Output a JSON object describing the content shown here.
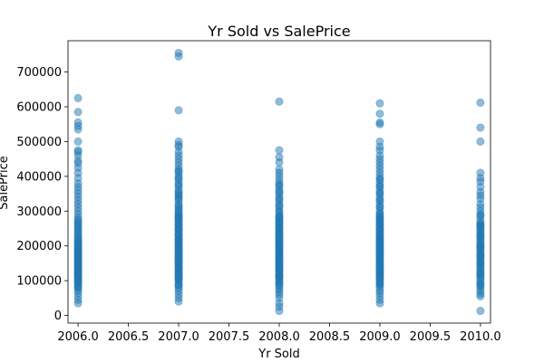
{
  "chart_data": {
    "type": "scatter",
    "title": "Yr Sold vs SalePrice",
    "xlabel": "Yr Sold",
    "ylabel": "SalePrice",
    "xlim": [
      2005.9,
      2010.1
    ],
    "ylim": [
      -22000,
      790000
    ],
    "xticks": [
      2006.0,
      2006.5,
      2007.0,
      2007.5,
      2008.0,
      2008.5,
      2009.0,
      2009.5,
      2010.0
    ],
    "xtick_labels": [
      "2006.0",
      "2006.5",
      "2007.0",
      "2007.5",
      "2008.0",
      "2008.5",
      "2009.0",
      "2009.5",
      "2010.0"
    ],
    "yticks": [
      0,
      100000,
      200000,
      300000,
      400000,
      500000,
      600000,
      700000
    ],
    "ytick_labels": [
      "0",
      "100000",
      "200000",
      "300000",
      "400000",
      "500000",
      "600000",
      "700000"
    ],
    "grid": false,
    "marker_color": "#1f77b4",
    "marker_alpha": 0.5,
    "series": [
      {
        "x": [
          2006,
          2006,
          2006,
          2006,
          2006,
          2006,
          2006,
          2006,
          2006,
          2006,
          2006,
          2006,
          2006,
          2006,
          2006,
          2006,
          2006,
          2006,
          2006,
          2006,
          2006,
          2006,
          2006,
          2006,
          2006,
          2006,
          2006,
          2006,
          2006,
          2006,
          2006,
          2006,
          2006,
          2006,
          2006,
          2006,
          2006,
          2006,
          2006,
          2006,
          2006,
          2006,
          2006,
          2006,
          2006,
          2006,
          2006,
          2006,
          2006,
          2006,
          2006,
          2006,
          2006,
          2006,
          2006,
          2006,
          2006,
          2006,
          2006,
          2006,
          2006,
          2006,
          2006,
          2006,
          2006,
          2006,
          2006,
          2006,
          2006,
          2006,
          2006,
          2006,
          2006,
          2006,
          2006,
          2006,
          2006,
          2006,
          2006,
          2006,
          2006,
          2006,
          2006,
          2006,
          2006,
          2006,
          2006,
          2006,
          2006,
          2006,
          2007,
          2007,
          2007,
          2007,
          2007,
          2007,
          2007,
          2007,
          2007,
          2007,
          2007,
          2007,
          2007,
          2007,
          2007,
          2007,
          2007,
          2007,
          2007,
          2007,
          2007,
          2007,
          2007,
          2007,
          2007,
          2007,
          2007,
          2007,
          2007,
          2007,
          2007,
          2007,
          2007,
          2007,
          2007,
          2007,
          2007,
          2007,
          2007,
          2007,
          2007,
          2007,
          2007,
          2007,
          2007,
          2007,
          2007,
          2007,
          2007,
          2007,
          2007,
          2007,
          2007,
          2007,
          2007,
          2007,
          2007,
          2007,
          2007,
          2007,
          2007,
          2007,
          2007,
          2007,
          2007,
          2007,
          2007,
          2007,
          2007,
          2007,
          2007,
          2007,
          2007,
          2007,
          2007,
          2007,
          2007,
          2007,
          2007,
          2007,
          2007,
          2007,
          2007,
          2007,
          2007,
          2007,
          2007,
          2007,
          2007,
          2007,
          2007,
          2007,
          2007,
          2007,
          2007,
          2007,
          2007,
          2007,
          2007,
          2007,
          2008,
          2008,
          2008,
          2008,
          2008,
          2008,
          2008,
          2008,
          2008,
          2008,
          2008,
          2008,
          2008,
          2008,
          2008,
          2008,
          2008,
          2008,
          2008,
          2008,
          2008,
          2008,
          2008,
          2008,
          2008,
          2008,
          2008,
          2008,
          2008,
          2008,
          2008,
          2008,
          2008,
          2008,
          2008,
          2008,
          2008,
          2008,
          2008,
          2008,
          2008,
          2008,
          2008,
          2008,
          2008,
          2008,
          2008,
          2008,
          2008,
          2008,
          2008,
          2008,
          2008,
          2008,
          2008,
          2008,
          2008,
          2008,
          2008,
          2008,
          2008,
          2008,
          2008,
          2008,
          2008,
          2008,
          2008,
          2008,
          2008,
          2008,
          2008,
          2008,
          2008,
          2008,
          2008,
          2008,
          2008,
          2008,
          2008,
          2008,
          2008,
          2008,
          2008,
          2008,
          2008,
          2008,
          2008,
          2008,
          2008,
          2008,
          2008,
          2009,
          2009,
          2009,
          2009,
          2009,
          2009,
          2009,
          2009,
          2009,
          2009,
          2009,
          2009,
          2009,
          2009,
          2009,
          2009,
          2009,
          2009,
          2009,
          2009,
          2009,
          2009,
          2009,
          2009,
          2009,
          2009,
          2009,
          2009,
          2009,
          2009,
          2009,
          2009,
          2009,
          2009,
          2009,
          2009,
          2009,
          2009,
          2009,
          2009,
          2009,
          2009,
          2009,
          2009,
          2009,
          2009,
          2009,
          2009,
          2009,
          2009,
          2009,
          2009,
          2009,
          2009,
          2009,
          2009,
          2009,
          2009,
          2009,
          2009,
          2009,
          2009,
          2009,
          2009,
          2009,
          2009,
          2009,
          2009,
          2009,
          2009,
          2009,
          2009,
          2009,
          2009,
          2009,
          2009,
          2009,
          2009,
          2009,
          2009,
          2009,
          2009,
          2009,
          2009,
          2009,
          2009,
          2009,
          2009,
          2009,
          2009,
          2009,
          2009,
          2009,
          2009,
          2009,
          2009,
          2009,
          2010,
          2010,
          2010,
          2010,
          2010,
          2010,
          2010,
          2010,
          2010,
          2010,
          2010,
          2010,
          2010,
          2010,
          2010,
          2010,
          2010,
          2010,
          2010,
          2010,
          2010,
          2010,
          2010,
          2010,
          2010,
          2010,
          2010,
          2010,
          2010,
          2010,
          2010,
          2010,
          2010,
          2010,
          2010,
          2010,
          2010,
          2010,
          2010,
          2010,
          2010,
          2010,
          2010,
          2010,
          2010,
          2010,
          2010,
          2010,
          2010,
          2010,
          2010,
          2010,
          2010,
          2010,
          2010,
          2010,
          2010,
          2010,
          2010,
          2010,
          2010,
          2010,
          2010,
          2010,
          2010
        ],
        "y": [
          35000,
          45000,
          55000,
          65000,
          72000,
          80000,
          85000,
          90000,
          95000,
          100000,
          103000,
          107000,
          110000,
          113000,
          116000,
          119000,
          122000,
          125000,
          128000,
          131000,
          134000,
          137000,
          140000,
          143000,
          146000,
          149000,
          152000,
          155000,
          158000,
          161000,
          164000,
          167000,
          170000,
          173000,
          176000,
          179000,
          182000,
          185000,
          188000,
          191000,
          194000,
          197000,
          200000,
          204000,
          208000,
          212000,
          216000,
          220000,
          225000,
          230000,
          235000,
          240000,
          245000,
          250000,
          255000,
          260000,
          265000,
          270000,
          275000,
          280000,
          290000,
          300000,
          310000,
          320000,
          330000,
          340000,
          350000,
          360000,
          370000,
          380000,
          395000,
          410000,
          425000,
          438000,
          445000,
          460000,
          470000,
          475000,
          500000,
          535000,
          545000,
          555000,
          585000,
          625000,
          80000,
          95000,
          120000,
          150000,
          180000,
          210000,
          40000,
          50000,
          60000,
          70000,
          78000,
          85000,
          92000,
          98000,
          103000,
          108000,
          112000,
          116000,
          120000,
          124000,
          128000,
          132000,
          136000,
          140000,
          144000,
          148000,
          152000,
          156000,
          160000,
          164000,
          168000,
          172000,
          176000,
          180000,
          184000,
          188000,
          192000,
          196000,
          200000,
          204000,
          208000,
          212000,
          216000,
          220000,
          225000,
          230000,
          235000,
          240000,
          245000,
          250000,
          255000,
          260000,
          265000,
          270000,
          275000,
          280000,
          285000,
          290000,
          300000,
          310000,
          320000,
          330000,
          340000,
          350000,
          360000,
          370000,
          380000,
          390000,
          400000,
          410000,
          420000,
          430000,
          440000,
          450000,
          460000,
          470000,
          485000,
          490000,
          500000,
          590000,
          745000,
          755000,
          88000,
          105000,
          118000,
          135000,
          150000,
          165000,
          178000,
          190000,
          205000,
          218000,
          232000,
          248000,
          262000,
          278000,
          295000,
          315000,
          335000,
          355000,
          375000,
          395000,
          415000,
          345000,
          305000,
          285000,
          13000,
          25000,
          35000,
          50000,
          60000,
          68000,
          75000,
          82000,
          88000,
          94000,
          100000,
          104000,
          108000,
          112000,
          116000,
          120000,
          124000,
          128000,
          132000,
          136000,
          140000,
          144000,
          148000,
          152000,
          156000,
          160000,
          164000,
          168000,
          172000,
          176000,
          180000,
          184000,
          188000,
          192000,
          196000,
          200000,
          204000,
          208000,
          212000,
          216000,
          220000,
          225000,
          230000,
          235000,
          240000,
          245000,
          250000,
          255000,
          260000,
          265000,
          270000,
          275000,
          280000,
          285000,
          290000,
          300000,
          310000,
          320000,
          330000,
          340000,
          350000,
          360000,
          370000,
          380000,
          390000,
          400000,
          410000,
          420000,
          440000,
          455000,
          475000,
          615000,
          92000,
          115000,
          130000,
          145000,
          158000,
          170000,
          185000,
          198000,
          210000,
          222000,
          236000,
          252000,
          268000,
          282000,
          298000,
          315000,
          335000,
          355000,
          375000,
          35000,
          45000,
          55000,
          65000,
          72000,
          80000,
          87000,
          93000,
          98000,
          102000,
          106000,
          110000,
          114000,
          118000,
          122000,
          126000,
          130000,
          134000,
          138000,
          142000,
          146000,
          150000,
          154000,
          158000,
          162000,
          166000,
          170000,
          174000,
          178000,
          182000,
          186000,
          190000,
          194000,
          198000,
          202000,
          206000,
          210000,
          214000,
          218000,
          222000,
          226000,
          230000,
          235000,
          240000,
          245000,
          250000,
          255000,
          260000,
          265000,
          270000,
          275000,
          280000,
          285000,
          290000,
          300000,
          310000,
          320000,
          330000,
          340000,
          350000,
          360000,
          370000,
          380000,
          390000,
          400000,
          410000,
          420000,
          430000,
          440000,
          450000,
          460000,
          475000,
          485000,
          500000,
          550000,
          555000,
          580000,
          610000,
          90000,
          112000,
          128000,
          143000,
          157000,
          172000,
          188000,
          203000,
          217000,
          232000,
          247000,
          262000,
          277000,
          293000,
          312000,
          332000,
          352000,
          372000,
          392000,
          13000,
          55000,
          62000,
          70000,
          78000,
          85000,
          92000,
          98000,
          104000,
          110000,
          115000,
          120000,
          125000,
          130000,
          135000,
          140000,
          145000,
          150000,
          155000,
          160000,
          165000,
          170000,
          175000,
          180000,
          185000,
          190000,
          195000,
          200000,
          205000,
          210000,
          215000,
          220000,
          225000,
          230000,
          235000,
          240000,
          245000,
          250000,
          255000,
          260000,
          265000,
          270000,
          280000,
          290000,
          300000,
          310000,
          320000,
          335000,
          345000,
          355000,
          370000,
          385000,
          395000,
          410000,
          500000,
          540000,
          612000,
          88000,
          118000,
          148000,
          172000,
          198000,
          228000,
          258000,
          288000
        ]
      }
    ]
  }
}
